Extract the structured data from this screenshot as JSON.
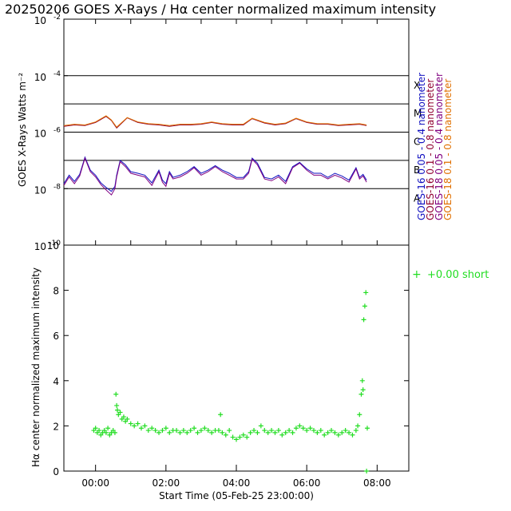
{
  "title": "20250206 GOES X-Rays / Hα center normalized maximum intensity",
  "colors": {
    "goes16_short": "#1010c0",
    "goes16_long": "#900030",
    "goes18_short": "#800080",
    "goes18_long": "#e07000",
    "halpha": "#22dd22",
    "frame": "#000000"
  },
  "chart_data": [
    {
      "type": "line",
      "panel": "top",
      "ylabel": "GOES X-Rays Watts m⁻²",
      "yscale": "log",
      "ylim": [
        1e-10,
        0.01
      ],
      "xlim": [
        -0.9,
        8.9
      ],
      "y_ticks": [
        {
          "base": "10",
          "exp": "-2",
          "value": 0.01
        },
        {
          "base": "10",
          "exp": "-4",
          "value": 0.0001
        },
        {
          "base": "10",
          "exp": "-6",
          "value": 1e-06
        },
        {
          "base": "10",
          "exp": "-8",
          "value": 1e-08
        },
        {
          "base": "10",
          "exp": "-10",
          "value": 1e-10
        }
      ],
      "flare_classes": [
        {
          "label": "X",
          "value": 0.0001
        },
        {
          "label": "M",
          "value": 1e-05
        },
        {
          "label": "C",
          "value": 1e-06
        },
        {
          "label": "B",
          "value": 1e-07
        },
        {
          "label": "A",
          "value": 1e-08
        }
      ],
      "series": [
        {
          "name": "GOES-16 0.05 - 0.4 nanometer",
          "color_key": "goes16_short",
          "x": [
            -0.9,
            -0.75,
            -0.6,
            -0.45,
            -0.3,
            -0.15,
            0,
            0.15,
            0.3,
            0.45,
            0.55,
            0.6,
            0.7,
            0.85,
            1.0,
            1.2,
            1.4,
            1.6,
            1.8,
            1.9,
            2.0,
            2.1,
            2.2,
            2.4,
            2.6,
            2.8,
            3.0,
            3.2,
            3.4,
            3.6,
            3.8,
            4.0,
            4.2,
            4.35,
            4.45,
            4.6,
            4.8,
            5.0,
            5.2,
            5.4,
            5.6,
            5.8,
            6.0,
            6.2,
            6.4,
            6.6,
            6.8,
            7.0,
            7.2,
            7.4,
            7.5,
            7.6,
            7.7
          ],
          "y": [
            1.5e-08,
            3e-08,
            1.8e-08,
            3.2e-08,
            1.3e-07,
            4.5e-08,
            3e-08,
            1.6e-08,
            1.1e-08,
            8e-09,
            1.2e-08,
            3e-08,
            1e-07,
            7e-08,
            4e-08,
            3.5e-08,
            3e-08,
            1.6e-08,
            4.5e-08,
            2e-08,
            1.5e-08,
            4e-08,
            2.5e-08,
            3e-08,
            4e-08,
            6e-08,
            3.5e-08,
            4.5e-08,
            6.5e-08,
            4.5e-08,
            3.5e-08,
            2.5e-08,
            2.5e-08,
            4e-08,
            1.2e-07,
            8e-08,
            2.5e-08,
            2.2e-08,
            3e-08,
            1.8e-08,
            6e-08,
            8.5e-08,
            5e-08,
            3.5e-08,
            3.5e-08,
            2.5e-08,
            3.5e-08,
            2.8e-08,
            2e-08,
            5.5e-08,
            2.5e-08,
            3.2e-08,
            2e-08
          ]
        },
        {
          "name": "GOES-16 0.1 - 0.8 nanometer",
          "color_key": "goes16_long",
          "x": [
            -0.9,
            -0.6,
            -0.3,
            0,
            0.3,
            0.45,
            0.6,
            0.9,
            1.2,
            1.5,
            1.8,
            2.1,
            2.4,
            2.7,
            3.0,
            3.3,
            3.6,
            3.9,
            4.2,
            4.45,
            4.8,
            5.1,
            5.4,
            5.7,
            6.0,
            6.3,
            6.6,
            6.9,
            7.2,
            7.5,
            7.7
          ],
          "y": [
            1.6e-06,
            1.8e-06,
            1.7e-06,
            2.2e-06,
            3.6e-06,
            2.6e-06,
            1.4e-06,
            3.2e-06,
            2.2e-06,
            1.9e-06,
            1.8e-06,
            1.6e-06,
            1.8e-06,
            1.8e-06,
            1.9e-06,
            2.2e-06,
            1.9e-06,
            1.8e-06,
            1.8e-06,
            3e-06,
            2.1e-06,
            1.8e-06,
            2e-06,
            3e-06,
            2.2e-06,
            1.9e-06,
            1.9e-06,
            1.7e-06,
            1.8e-06,
            1.9e-06,
            1.7e-06
          ]
        },
        {
          "name": "GOES-18 0.05 - 0.4 nanometer",
          "color_key": "goes18_short",
          "x": [
            -0.9,
            -0.75,
            -0.6,
            -0.45,
            -0.3,
            -0.15,
            0,
            0.15,
            0.3,
            0.45,
            0.55,
            0.6,
            0.7,
            0.85,
            1.0,
            1.2,
            1.4,
            1.6,
            1.8,
            1.9,
            2.0,
            2.1,
            2.2,
            2.4,
            2.6,
            2.8,
            3.0,
            3.2,
            3.4,
            3.6,
            3.8,
            4.0,
            4.2,
            4.35,
            4.45,
            4.6,
            4.8,
            5.0,
            5.2,
            5.4,
            5.6,
            5.8,
            6.0,
            6.2,
            6.4,
            6.6,
            6.8,
            7.0,
            7.2,
            7.4,
            7.5,
            7.6,
            7.7
          ],
          "y": [
            1.3e-08,
            2.6e-08,
            1.5e-08,
            2.8e-08,
            1.2e-07,
            4e-08,
            2.6e-08,
            1.4e-08,
            9e-09,
            6e-09,
            1e-08,
            2.6e-08,
            9e-08,
            6e-08,
            3.5e-08,
            3e-08,
            2.6e-08,
            1.3e-08,
            4e-08,
            1.7e-08,
            1.2e-08,
            3.5e-08,
            2.2e-08,
            2.6e-08,
            3.5e-08,
            5.5e-08,
            3e-08,
            4e-08,
            6e-08,
            4e-08,
            3e-08,
            2.2e-08,
            2.2e-08,
            3.5e-08,
            1.1e-07,
            7e-08,
            2.2e-08,
            1.9e-08,
            2.6e-08,
            1.5e-08,
            5.5e-08,
            8e-08,
            4.5e-08,
            3e-08,
            3e-08,
            2.2e-08,
            3e-08,
            2.4e-08,
            1.7e-08,
            5e-08,
            2.2e-08,
            2.8e-08,
            1.7e-08
          ]
        },
        {
          "name": "GOES-18 0.1 - 0.8 nanometer",
          "color_key": "goes18_long",
          "x": [
            -0.9,
            -0.6,
            -0.3,
            0,
            0.3,
            0.45,
            0.6,
            0.9,
            1.2,
            1.5,
            1.8,
            2.1,
            2.4,
            2.7,
            3.0,
            3.3,
            3.6,
            3.9,
            4.2,
            4.45,
            4.8,
            5.1,
            5.4,
            5.7,
            6.0,
            6.3,
            6.6,
            6.9,
            7.2,
            7.5,
            7.7
          ],
          "y": [
            1.7e-06,
            1.9e-06,
            1.8e-06,
            2.3e-06,
            3.8e-06,
            2.7e-06,
            1.5e-06,
            3.3e-06,
            2.3e-06,
            2e-06,
            1.9e-06,
            1.7e-06,
            1.9e-06,
            1.9e-06,
            2e-06,
            2.3e-06,
            2e-06,
            1.9e-06,
            1.9e-06,
            3.1e-06,
            2.2e-06,
            1.9e-06,
            2.1e-06,
            3.1e-06,
            2.3e-06,
            2e-06,
            2e-06,
            1.8e-06,
            1.9e-06,
            2e-06,
            1.8e-06
          ]
        }
      ],
      "legend": [
        {
          "label": "GOES-16  0.05 - 0.4  nanometer",
          "color_key": "goes16_short"
        },
        {
          "label": "GOES-16  0.1  - 0.8  nanometer",
          "color_key": "goes16_long"
        },
        {
          "label": "GOES-18  0.05 - 0.4  nanometer",
          "color_key": "goes18_short"
        },
        {
          "label": "GOES-18  0.1  - 0.8  nanometer",
          "color_key": "goes18_long"
        }
      ]
    },
    {
      "type": "scatter",
      "panel": "bottom",
      "ylabel": "Hα center normalized maximum intensity",
      "xlabel": "Start Time (05-Feb-25 23:00:00)",
      "ylim": [
        0,
        10
      ],
      "xlim": [
        -0.9,
        8.9
      ],
      "y_ticks": [
        "0",
        "2",
        "4",
        "6",
        "8",
        "10"
      ],
      "x_ticks": [
        {
          "label": "00:00",
          "value": 0
        },
        {
          "label": "02:00",
          "value": 2
        },
        {
          "label": "04:00",
          "value": 4
        },
        {
          "label": "06:00",
          "value": 6
        },
        {
          "label": "08:00",
          "value": 8
        }
      ],
      "legend": {
        "marker": "+",
        "label": "+0.00 short"
      },
      "series": [
        {
          "name": "Hα center",
          "color_key": "halpha",
          "x": [
            -0.05,
            0,
            0.05,
            0.1,
            0.15,
            0.2,
            0.25,
            0.3,
            0.35,
            0.4,
            0.45,
            0.5,
            0.55,
            0.58,
            0.6,
            0.62,
            0.65,
            0.7,
            0.75,
            0.8,
            0.85,
            0.9,
            1.0,
            1.1,
            1.2,
            1.3,
            1.4,
            1.5,
            1.6,
            1.7,
            1.8,
            1.9,
            2.0,
            2.1,
            2.2,
            2.3,
            2.4,
            2.5,
            2.6,
            2.7,
            2.8,
            2.9,
            3.0,
            3.1,
            3.2,
            3.3,
            3.4,
            3.5,
            3.55,
            3.6,
            3.7,
            3.8,
            3.9,
            4.0,
            4.1,
            4.2,
            4.3,
            4.4,
            4.5,
            4.6,
            4.7,
            4.8,
            4.9,
            5.0,
            5.1,
            5.2,
            5.3,
            5.4,
            5.5,
            5.6,
            5.7,
            5.8,
            5.9,
            6.0,
            6.1,
            6.2,
            6.3,
            6.4,
            6.5,
            6.6,
            6.7,
            6.8,
            6.9,
            7.0,
            7.1,
            7.2,
            7.3,
            7.4,
            7.45,
            7.5,
            7.55,
            7.58,
            7.6,
            7.62,
            7.65,
            7.68,
            7.7,
            7.72
          ],
          "y": [
            1.8,
            1.9,
            1.7,
            1.8,
            1.6,
            1.7,
            1.8,
            1.7,
            1.9,
            1.6,
            1.7,
            1.8,
            1.7,
            3.4,
            2.9,
            2.7,
            2.5,
            2.6,
            2.3,
            2.4,
            2.2,
            2.3,
            2.1,
            2.0,
            2.1,
            1.9,
            2.0,
            1.8,
            1.9,
            1.8,
            1.7,
            1.8,
            1.9,
            1.7,
            1.8,
            1.8,
            1.7,
            1.8,
            1.7,
            1.8,
            1.9,
            1.7,
            1.8,
            1.9,
            1.8,
            1.7,
            1.8,
            1.8,
            2.5,
            1.7,
            1.6,
            1.8,
            1.5,
            1.4,
            1.5,
            1.6,
            1.5,
            1.7,
            1.8,
            1.7,
            2.0,
            1.8,
            1.7,
            1.8,
            1.7,
            1.8,
            1.6,
            1.7,
            1.8,
            1.7,
            1.9,
            2.0,
            1.9,
            1.8,
            1.9,
            1.8,
            1.7,
            1.8,
            1.6,
            1.7,
            1.8,
            1.7,
            1.6,
            1.7,
            1.8,
            1.7,
            1.6,
            1.8,
            2.0,
            2.5,
            3.4,
            4.0,
            3.6,
            6.7,
            7.3,
            7.9,
            0.0,
            1.9
          ]
        }
      ]
    }
  ]
}
